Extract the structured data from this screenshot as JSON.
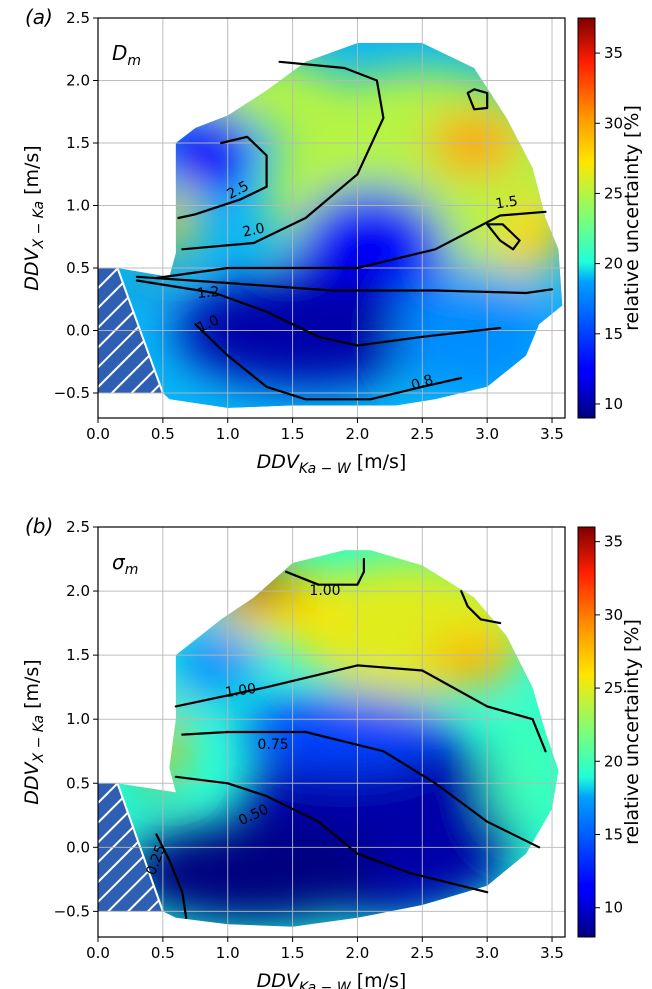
{
  "chart_data": [
    {
      "type": "heatmap",
      "panel_label": "(a)",
      "parameter_label": "D",
      "parameter_sub": "m",
      "xlabel": {
        "base": "DDV",
        "sub": "Ka − W",
        "unit": " [m/s]"
      },
      "ylabel": {
        "base": "DDV",
        "sub": "X − Ka",
        "unit": " [m/s]"
      },
      "xlim": [
        0.0,
        3.6
      ],
      "ylim": [
        -0.7,
        2.5
      ],
      "xticks": [
        "0.0",
        "0.5",
        "1.0",
        "1.5",
        "2.0",
        "2.5",
        "3.0",
        "3.5"
      ],
      "yticks": [
        "−0.5",
        "0.0",
        "0.5",
        "1.0",
        "1.5",
        "2.0",
        "2.5"
      ],
      "grid": true,
      "colorbar": {
        "label": "relative uncertainty [%]",
        "range": [
          9,
          37.5
        ],
        "ticks": [
          "10",
          "15",
          "20",
          "25",
          "30",
          "35"
        ]
      },
      "contours": [
        {
          "label": "2.5",
          "points": [
            [
              0.95,
              1.5
            ],
            [
              1.15,
              1.55
            ],
            [
              1.3,
              1.4
            ],
            [
              1.3,
              1.15
            ],
            [
              1.1,
              1.05
            ],
            [
              0.75,
              0.93
            ],
            [
              0.62,
              0.9
            ]
          ]
        },
        {
          "label": "2.0",
          "points": [
            [
              0.65,
              0.65
            ],
            [
              1.2,
              0.7
            ],
            [
              1.6,
              0.9
            ],
            [
              2.0,
              1.25
            ],
            [
              2.2,
              1.7
            ],
            [
              2.15,
              2.0
            ],
            [
              1.9,
              2.1
            ],
            [
              1.4,
              2.15
            ]
          ]
        },
        {
          "label": "1.5",
          "points": [
            [
              0.45,
              0.42
            ],
            [
              1.0,
              0.5
            ],
            [
              2.0,
              0.5
            ],
            [
              2.6,
              0.65
            ],
            [
              3.1,
              0.92
            ],
            [
              3.45,
              0.95
            ]
          ]
        },
        {
          "label": "1.2",
          "points": [
            [
              0.3,
              0.43
            ],
            [
              1.0,
              0.38
            ],
            [
              1.8,
              0.32
            ],
            [
              2.6,
              0.32
            ],
            [
              3.3,
              0.3
            ],
            [
              3.5,
              0.33
            ]
          ]
        },
        {
          "label": "1.0",
          "points": [
            [
              0.3,
              0.4
            ],
            [
              0.9,
              0.3
            ],
            [
              1.3,
              0.15
            ],
            [
              1.7,
              -0.05
            ],
            [
              2.0,
              -0.12
            ],
            [
              2.5,
              -0.05
            ],
            [
              3.1,
              0.02
            ]
          ]
        },
        {
          "label": "0.8",
          "points": [
            [
              0.75,
              0.05
            ],
            [
              1.0,
              -0.2
            ],
            [
              1.3,
              -0.45
            ],
            [
              1.6,
              -0.55
            ],
            [
              2.1,
              -0.55
            ],
            [
              2.5,
              -0.45
            ],
            [
              2.8,
              -0.38
            ]
          ]
        },
        {
          "label": "",
          "points": [
            [
              2.85,
              1.9
            ],
            [
              2.9,
              1.77
            ],
            [
              3.0,
              1.78
            ],
            [
              3.0,
              1.9
            ],
            [
              2.9,
              1.93
            ],
            [
              2.85,
              1.9
            ]
          ]
        },
        {
          "label": "",
          "points": [
            [
              3.0,
              0.85
            ],
            [
              3.1,
              0.72
            ],
            [
              3.2,
              0.65
            ],
            [
              3.25,
              0.72
            ],
            [
              3.12,
              0.85
            ],
            [
              3.0,
              0.85
            ]
          ]
        }
      ],
      "inline_labels": [
        {
          "text": "2.5",
          "x": 1.08,
          "y": 1.12,
          "rot": -28
        },
        {
          "text": "2.0",
          "x": 1.2,
          "y": 0.8,
          "rot": -12
        },
        {
          "text": "1.5",
          "x": 3.15,
          "y": 1.02,
          "rot": -8
        },
        {
          "text": "1.2",
          "x": 0.85,
          "y": 0.3,
          "rot": -5
        },
        {
          "text": "1.0",
          "x": 0.85,
          "y": 0.05,
          "rot": -25
        },
        {
          "text": "0.8",
          "x": 2.5,
          "y": -0.42,
          "rot": -18
        }
      ],
      "heat_blobs": [
        {
          "x": 2.5,
          "y": 1.1,
          "value": 25,
          "rx": 1.2,
          "ry": 1.0
        },
        {
          "x": 1.3,
          "y": 1.9,
          "value": 25,
          "rx": 0.6,
          "ry": 0.3
        },
        {
          "x": 0.85,
          "y": 1.45,
          "value": 12,
          "rx": 0.35,
          "ry": 0.35
        },
        {
          "x": 2.1,
          "y": 0.6,
          "value": 12,
          "rx": 0.6,
          "ry": 0.55
        },
        {
          "x": 1.6,
          "y": 0.0,
          "value": 10,
          "rx": 1.0,
          "ry": 0.45
        },
        {
          "x": 2.9,
          "y": 1.5,
          "value": 30,
          "rx": 0.35,
          "ry": 0.25
        },
        {
          "x": 3.35,
          "y": 0.75,
          "value": 28,
          "rx": 0.25,
          "ry": 0.3
        },
        {
          "x": 0.6,
          "y": 0.9,
          "value": 28,
          "rx": 0.15,
          "ry": 0.3
        },
        {
          "x": 0.4,
          "y": 0.43,
          "value": 37,
          "rx": 0.12,
          "ry": 0.05
        },
        {
          "x": 2.9,
          "y": 0.0,
          "value": 18,
          "rx": 0.6,
          "ry": 0.5
        }
      ]
    },
    {
      "type": "heatmap",
      "panel_label": "(b)",
      "parameter_label": "σ",
      "parameter_sub": "m",
      "xlabel": {
        "base": "DDV",
        "sub": "Ka − W",
        "unit": " [m/s]"
      },
      "ylabel": {
        "base": "DDV",
        "sub": "X − Ka",
        "unit": " [m/s]"
      },
      "xlim": [
        0.0,
        3.6
      ],
      "ylim": [
        -0.7,
        2.5
      ],
      "xticks": [
        "0.0",
        "0.5",
        "1.0",
        "1.5",
        "2.0",
        "2.5",
        "3.0",
        "3.5"
      ],
      "yticks": [
        "−0.5",
        "0.0",
        "0.5",
        "1.0",
        "1.5",
        "2.0",
        "2.5"
      ],
      "grid": true,
      "colorbar": {
        "label": "relative uncertainty [%]",
        "range": [
          8,
          36
        ],
        "ticks": [
          "10",
          "15",
          "20",
          "25",
          "30",
          "35"
        ]
      },
      "contours": [
        {
          "label": "1.00",
          "points": [
            [
              1.45,
              2.15
            ],
            [
              1.7,
              2.05
            ],
            [
              2.0,
              2.05
            ],
            [
              2.05,
              2.15
            ],
            [
              2.05,
              2.25
            ]
          ]
        },
        {
          "label": "1.00",
          "points": [
            [
              0.6,
              1.1
            ],
            [
              1.3,
              1.25
            ],
            [
              2.0,
              1.42
            ],
            [
              2.5,
              1.38
            ],
            [
              3.0,
              1.1
            ],
            [
              3.35,
              1.0
            ],
            [
              3.45,
              0.75
            ]
          ]
        },
        {
          "label": "0.75",
          "points": [
            [
              0.65,
              0.88
            ],
            [
              1.0,
              0.9
            ],
            [
              1.6,
              0.9
            ],
            [
              2.2,
              0.75
            ],
            [
              2.6,
              0.5
            ],
            [
              3.0,
              0.2
            ],
            [
              3.4,
              0.0
            ]
          ]
        },
        {
          "label": "0.50",
          "points": [
            [
              0.6,
              0.55
            ],
            [
              1.0,
              0.5
            ],
            [
              1.3,
              0.4
            ],
            [
              1.7,
              0.2
            ],
            [
              2.0,
              -0.05
            ],
            [
              2.4,
              -0.2
            ],
            [
              3.0,
              -0.35
            ]
          ]
        },
        {
          "label": "0.25",
          "points": [
            [
              0.45,
              0.1
            ],
            [
              0.55,
              -0.1
            ],
            [
              0.65,
              -0.35
            ],
            [
              0.68,
              -0.55
            ]
          ]
        },
        {
          "label": "",
          "points": [
            [
              2.8,
              2.0
            ],
            [
              2.85,
              1.88
            ],
            [
              2.95,
              1.78
            ],
            [
              3.1,
              1.75
            ]
          ]
        }
      ],
      "inline_labels": [
        {
          "text": "1.00",
          "x": 1.75,
          "y": 2.0,
          "rot": 0
        },
        {
          "text": "1.00",
          "x": 1.1,
          "y": 1.22,
          "rot": -8
        },
        {
          "text": "0.75",
          "x": 1.35,
          "y": 0.8,
          "rot": 0
        },
        {
          "text": "0.50",
          "x": 1.2,
          "y": 0.25,
          "rot": -25
        },
        {
          "text": "0.25",
          "x": 0.45,
          "y": -0.1,
          "rot": -70
        }
      ],
      "heat_blobs": [
        {
          "x": 2.4,
          "y": 1.7,
          "value": 25,
          "rx": 0.9,
          "ry": 0.55
        },
        {
          "x": 1.4,
          "y": 1.9,
          "value": 26,
          "rx": 0.5,
          "ry": 0.3
        },
        {
          "x": 1.2,
          "y": 2.05,
          "value": 35,
          "rx": 0.35,
          "ry": 0.15
        },
        {
          "x": 2.2,
          "y": 0.2,
          "value": 9,
          "rx": 1.1,
          "ry": 0.75
        },
        {
          "x": 1.2,
          "y": -0.2,
          "value": 8,
          "rx": 1.0,
          "ry": 0.4
        },
        {
          "x": 0.9,
          "y": 1.45,
          "value": 17,
          "rx": 0.35,
          "ry": 0.3
        },
        {
          "x": 3.3,
          "y": 0.6,
          "value": 20,
          "rx": 0.3,
          "ry": 0.5
        },
        {
          "x": 0.55,
          "y": 0.8,
          "value": 28,
          "rx": 0.12,
          "ry": 0.3
        },
        {
          "x": 0.4,
          "y": 0.43,
          "value": 36,
          "rx": 0.12,
          "ry": 0.05
        },
        {
          "x": 2.9,
          "y": 1.45,
          "value": 28,
          "rx": 0.35,
          "ry": 0.2
        },
        {
          "x": 1.9,
          "y": 0.9,
          "value": 14,
          "rx": 0.8,
          "ry": 0.3
        }
      ]
    }
  ]
}
